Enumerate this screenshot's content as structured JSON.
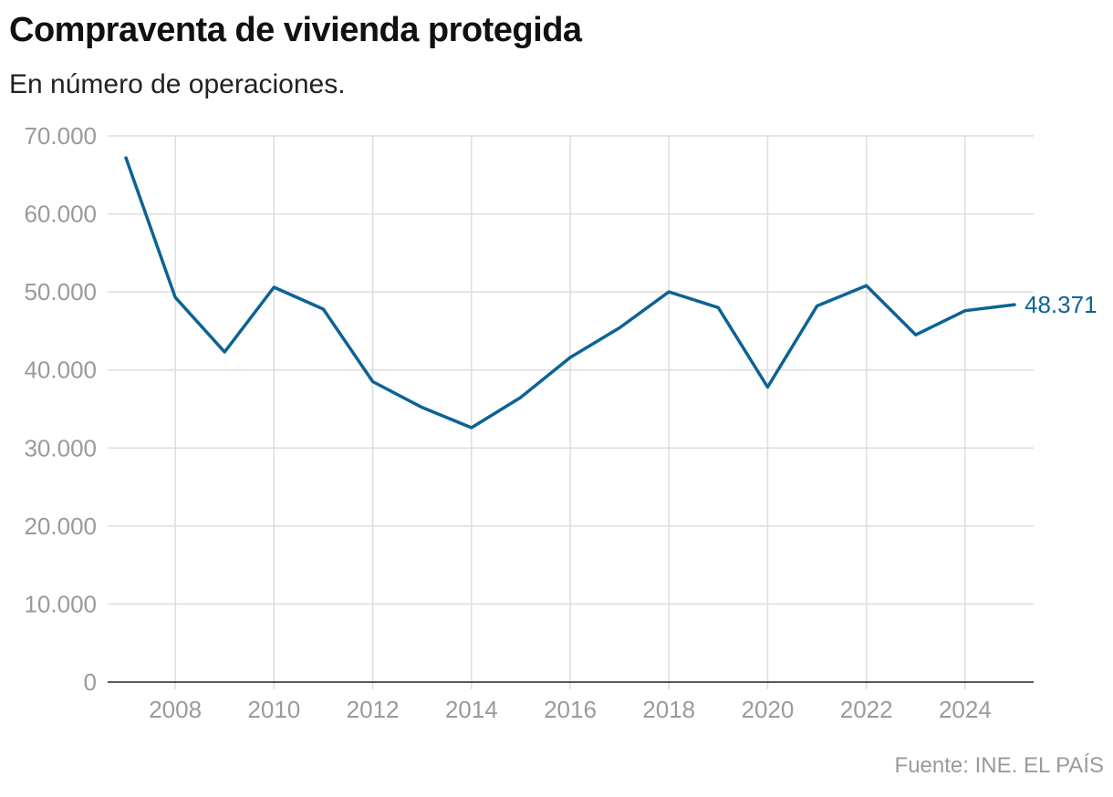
{
  "chart_data": {
    "type": "line",
    "title": "Compraventa de vivienda protegida",
    "subtitle": "En número de operaciones.",
    "source": "Fuente: INE. EL PAÍS",
    "x": [
      2007,
      2008,
      2009,
      2010,
      2011,
      2012,
      2013,
      2014,
      2015,
      2016,
      2017,
      2018,
      2019,
      2020,
      2021,
      2022,
      2023,
      2024,
      2025
    ],
    "series": [
      {
        "values": [
          67200,
          49300,
          42300,
          50600,
          47800,
          38500,
          35200,
          32600,
          36500,
          41600,
          45400,
          50000,
          48000,
          37800,
          48200,
          50800,
          44500,
          47600,
          48371
        ],
        "color": "#0b6394"
      }
    ],
    "end_label": "48.371",
    "y_ticks": [
      0,
      10000,
      20000,
      30000,
      40000,
      50000,
      60000,
      70000
    ],
    "y_tick_labels": [
      "0",
      "10.000",
      "20.000",
      "30.000",
      "40.000",
      "50.000",
      "60.000",
      "70.000"
    ],
    "x_ticks": [
      2008,
      2010,
      2012,
      2014,
      2016,
      2018,
      2020,
      2022,
      2024
    ],
    "x_tick_labels": [
      "2008",
      "2010",
      "2012",
      "2014",
      "2016",
      "2018",
      "2020",
      "2022",
      "2024"
    ],
    "ylim": [
      0,
      70000
    ],
    "xlim": [
      2007,
      2025
    ],
    "grid": true,
    "legend": "none"
  }
}
